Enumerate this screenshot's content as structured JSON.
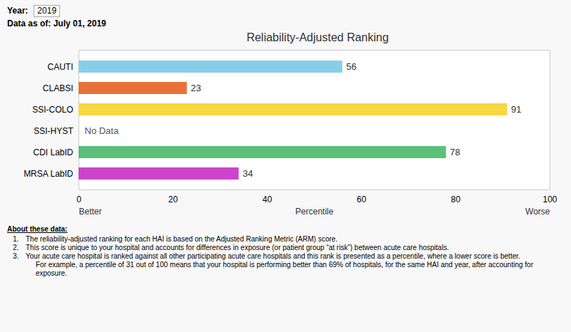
{
  "chart_data": {
    "type": "bar",
    "orientation": "horizontal",
    "title": "Reliability-Adjusted Ranking",
    "categories": [
      "CAUTI",
      "CLABSI",
      "SSI-COLO",
      "SSI-HYST",
      "CDI LabID",
      "MRSA LabID"
    ],
    "values": [
      56,
      23,
      91,
      null,
      78,
      34
    ],
    "colors": [
      "#87CEEB",
      "#E8713A",
      "#F5D842",
      null,
      "#5CBF7A",
      "#CC44CC"
    ],
    "xlim": [
      0,
      100
    ],
    "xticks": [
      0,
      20,
      40,
      60,
      80,
      100
    ],
    "xlabel": "Percentile",
    "grid": true,
    "data_labels": true,
    "annotations": {
      "year_label": "Year:",
      "year_value": "2019",
      "date_label": "Data as of: July 01, 2019",
      "x_left": "Better",
      "x_right": "Worse",
      "no_data": "No Data"
    },
    "footnotes": {
      "title": "About these data:",
      "items": [
        {
          "label": "1.",
          "text": "The reliability-adjusted ranking for each HAI is based on the Adjusted Ranking Metric (ARM) score."
        },
        {
          "label": "2.",
          "text": "This score is unique to your hospital and accounts for differences in exposure (or patient group “at risk”) between acute care hospitals."
        },
        {
          "label": "3.",
          "text": "Your acute care hospital is ranked against all other participating acute care hospitals and this rank is presented as a percentile, where a lower score is better.\n     For example, a percentile of 31 out of 100 means that your hospital is performing better than 69% of hospitals, for the same HAI and year, after accounting for\n     exposure."
        }
      ]
    }
  }
}
